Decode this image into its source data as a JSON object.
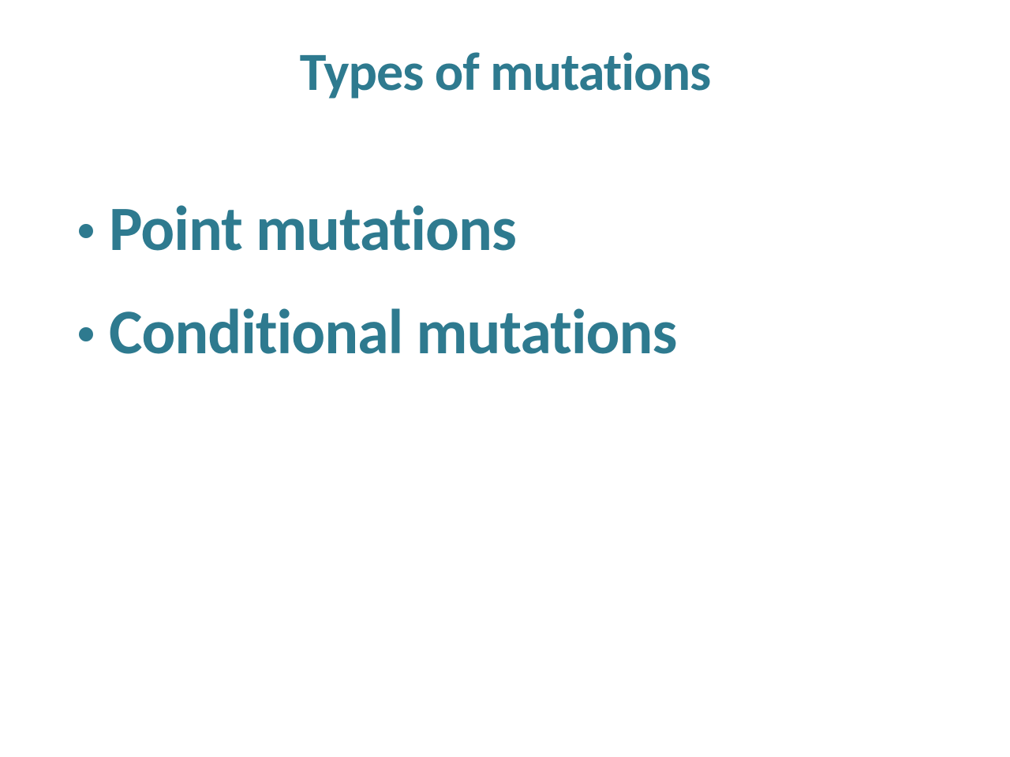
{
  "slide": {
    "title": "Types of mutations",
    "bullets": [
      {
        "text": "Point mutations"
      },
      {
        "text": "Conditional mutations"
      }
    ],
    "colors": {
      "text": "#2e7a8f",
      "background": "#ffffff",
      "bullet": "#2e7a8f"
    },
    "typography": {
      "title_fontsize": 68,
      "bullet_fontsize": 80,
      "font_weight": 700,
      "font_family": "Segoe UI"
    }
  }
}
